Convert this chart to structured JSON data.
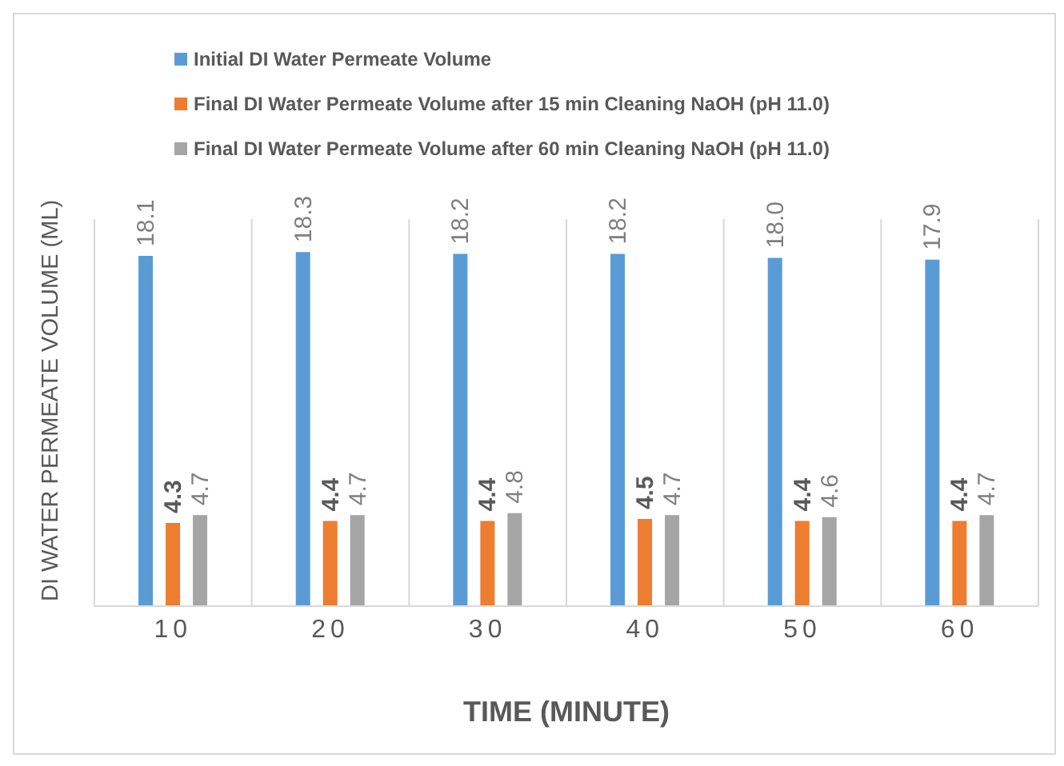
{
  "chart_data": {
    "type": "bar",
    "xlabel": "TIME (MINUTE)",
    "ylabel": "DI WATER PERMEATE VOLUME (ML)",
    "categories": [
      "10",
      "20",
      "30",
      "40",
      "50",
      "60"
    ],
    "series": [
      {
        "name": "Initial DI Water Permeate Volume",
        "color": "#5b9bd5",
        "values": [
          18.1,
          18.3,
          18.2,
          18.2,
          18.0,
          17.9
        ],
        "value_labels": [
          "18.1",
          "18.3",
          "18.2",
          "18.2",
          "18.0",
          "17.9"
        ]
      },
      {
        "name": "Final DI Water Permeate Volume after 15 min Cleaning NaOH (pH 11.0)",
        "color": "#ed7d31",
        "values": [
          4.3,
          4.4,
          4.4,
          4.5,
          4.4,
          4.4
        ]
      },
      {
        "name": "Final DI Water Permeate Volume after 60 min Cleaning NaOH (pH 11.0)",
        "color": "#a5a5a5",
        "values": [
          4.7,
          4.7,
          4.8,
          4.7,
          4.6,
          4.7
        ]
      }
    ],
    "data_labels": true,
    "grid": "x",
    "legend": "top left"
  }
}
